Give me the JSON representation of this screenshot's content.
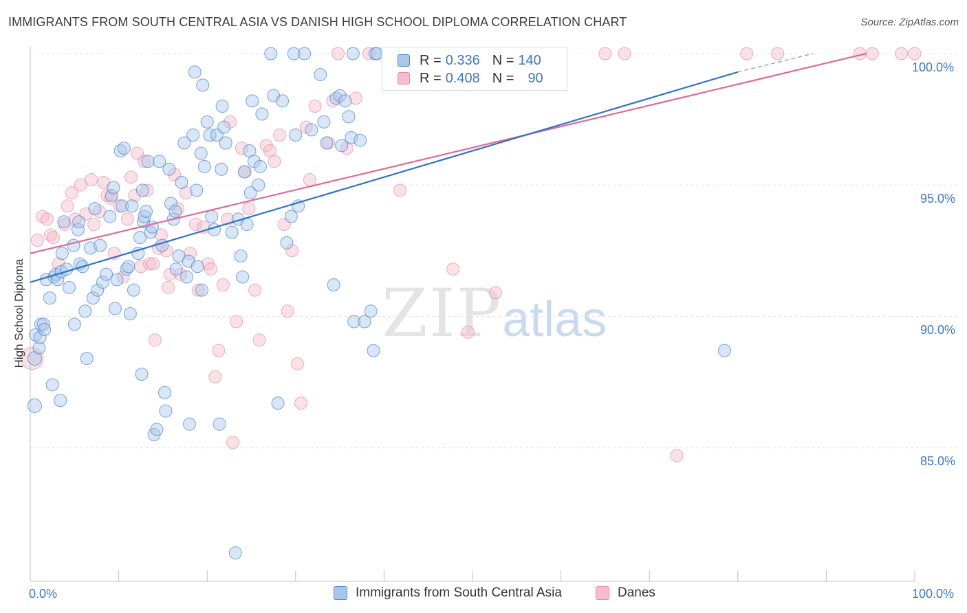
{
  "title": "IMMIGRANTS FROM SOUTH CENTRAL ASIA VS DANISH HIGH SCHOOL DIPLOMA CORRELATION CHART",
  "source": "Source: ZipAtlas.com",
  "watermark": {
    "zip": "ZIP",
    "atlas": "atlas"
  },
  "legend": {
    "row1": {
      "r_label": "R =",
      "r_value": "0.336",
      "n_label": "N =",
      "n_value": "140"
    },
    "row2": {
      "r_label": "R =",
      "r_value": "0.408",
      "n_label": "N =",
      "n_value": "90"
    }
  },
  "bottom_legend": {
    "series1": "Immigrants from South Central Asia",
    "series2": "Danes"
  },
  "axis": {
    "x_min_label": "0.0%",
    "x_max_label": "100.0%",
    "y_labels": [
      "100.0%",
      "95.0%",
      "90.0%",
      "85.0%"
    ]
  },
  "colors": {
    "blue_fill": "#a9c7ec",
    "blue_stroke": "#4f86cc",
    "blue_line": "#2f72cc",
    "pink_fill": "#f5bccb",
    "pink_stroke": "#e48aa3",
    "pink_line": "#e06a94",
    "tick_text": "#3a78c9"
  },
  "chart_data": {
    "type": "scatter",
    "title": "IMMIGRANTS FROM SOUTH CENTRAL ASIA VS DANISH HIGH SCHOOL DIPLOMA CORRELATION CHART",
    "xlabel": "",
    "ylabel": "High School Diploma",
    "xlim": [
      0,
      100
    ],
    "ylim": [
      80.5,
      100.6
    ],
    "x_ticks": [
      "0.0%",
      "100.0%"
    ],
    "y_ticks": [
      100,
      95,
      90,
      85
    ],
    "grid": true,
    "legend_position": "top-center",
    "series": [
      {
        "name": "Immigrants from South Central Asia",
        "R": 0.336,
        "N": 140,
        "trend": {
          "x0": 0,
          "y0": 91.3,
          "x1": 80,
          "y1": 99.3,
          "dashed_to": {
            "x": 88.5,
            "y": 100.0
          }
        },
        "points": [
          [
            0.5,
            86.6
          ],
          [
            0.5,
            88.4
          ],
          [
            0.6,
            89.3
          ],
          [
            1.0,
            88.8
          ],
          [
            1.1,
            89.2
          ],
          [
            1.2,
            89.7
          ],
          [
            1.5,
            89.7
          ],
          [
            1.6,
            89.5
          ],
          [
            1.8,
            91.4
          ],
          [
            2.2,
            90.7
          ],
          [
            2.5,
            87.4
          ],
          [
            2.7,
            91.5
          ],
          [
            2.9,
            91.6
          ],
          [
            3.1,
            91.4
          ],
          [
            3.4,
            86.8
          ],
          [
            3.5,
            91.7
          ],
          [
            3.6,
            92.4
          ],
          [
            3.8,
            93.6
          ],
          [
            4.1,
            91.8
          ],
          [
            4.4,
            91.1
          ],
          [
            4.9,
            92.7
          ],
          [
            5.0,
            89.7
          ],
          [
            5.4,
            93.3
          ],
          [
            5.5,
            93.6
          ],
          [
            5.6,
            92.0
          ],
          [
            5.9,
            91.9
          ],
          [
            6.2,
            90.2
          ],
          [
            6.4,
            88.4
          ],
          [
            6.8,
            92.6
          ],
          [
            7.1,
            90.7
          ],
          [
            7.3,
            94.1
          ],
          [
            7.6,
            91.0
          ],
          [
            7.9,
            92.7
          ],
          [
            8.2,
            91.3
          ],
          [
            8.6,
            91.6
          ],
          [
            9.0,
            93.8
          ],
          [
            9.2,
            94.6
          ],
          [
            9.4,
            94.9
          ],
          [
            9.6,
            90.3
          ],
          [
            9.8,
            91.4
          ],
          [
            10.2,
            96.3
          ],
          [
            10.4,
            94.2
          ],
          [
            10.6,
            96.4
          ],
          [
            10.9,
            91.8
          ],
          [
            11.1,
            91.9
          ],
          [
            11.3,
            90.1
          ],
          [
            11.5,
            94.2
          ],
          [
            11.7,
            91.0
          ],
          [
            12.2,
            92.4
          ],
          [
            12.4,
            93.0
          ],
          [
            12.6,
            87.8
          ],
          [
            12.7,
            94.8
          ],
          [
            12.8,
            93.6
          ],
          [
            12.9,
            93.8
          ],
          [
            13.1,
            94.0
          ],
          [
            13.3,
            95.9
          ],
          [
            13.6,
            93.2
          ],
          [
            13.8,
            93.4
          ],
          [
            14.0,
            85.5
          ],
          [
            14.3,
            85.7
          ],
          [
            14.6,
            95.9
          ],
          [
            14.9,
            92.7
          ],
          [
            15.2,
            87.1
          ],
          [
            15.3,
            86.4
          ],
          [
            15.7,
            95.6
          ],
          [
            15.9,
            94.3
          ],
          [
            16.2,
            93.7
          ],
          [
            16.4,
            94.0
          ],
          [
            16.5,
            91.8
          ],
          [
            16.8,
            92.3
          ],
          [
            17.1,
            95.1
          ],
          [
            17.4,
            96.6
          ],
          [
            17.7,
            91.5
          ],
          [
            17.9,
            92.1
          ],
          [
            18.0,
            85.9
          ],
          [
            18.4,
            96.9
          ],
          [
            18.6,
            99.3
          ],
          [
            18.8,
            94.8
          ],
          [
            18.9,
            91.9
          ],
          [
            19.3,
            96.2
          ],
          [
            19.4,
            91.0
          ],
          [
            19.5,
            98.8
          ],
          [
            19.7,
            95.7
          ],
          [
            20.0,
            97.4
          ],
          [
            20.3,
            96.9
          ],
          [
            20.5,
            93.8
          ],
          [
            20.8,
            93.3
          ],
          [
            21.1,
            96.9
          ],
          [
            21.4,
            85.9
          ],
          [
            21.6,
            95.6
          ],
          [
            21.7,
            98.0
          ],
          [
            21.9,
            97.2
          ],
          [
            22.1,
            96.6
          ],
          [
            22.8,
            93.2
          ],
          [
            23.2,
            81.0
          ],
          [
            23.5,
            93.7
          ],
          [
            23.8,
            92.3
          ],
          [
            24.0,
            91.5
          ],
          [
            24.2,
            95.5
          ],
          [
            24.5,
            93.5
          ],
          [
            24.8,
            96.3
          ],
          [
            24.9,
            94.7
          ],
          [
            25.1,
            98.2
          ],
          [
            25.3,
            95.9
          ],
          [
            25.8,
            95.0
          ],
          [
            26.0,
            95.7
          ],
          [
            26.2,
            97.7
          ],
          [
            27.2,
            100.0
          ],
          [
            27.5,
            98.4
          ],
          [
            28.0,
            86.7
          ],
          [
            28.5,
            98.2
          ],
          [
            29.0,
            92.8
          ],
          [
            29.5,
            93.8
          ],
          [
            29.8,
            100.0
          ],
          [
            30.0,
            96.9
          ],
          [
            30.3,
            94.2
          ],
          [
            31.0,
            100.0
          ],
          [
            31.8,
            97.1
          ],
          [
            32.8,
            99.2
          ],
          [
            33.2,
            97.4
          ],
          [
            33.5,
            96.6
          ],
          [
            34.3,
            91.2
          ],
          [
            34.6,
            98.3
          ],
          [
            35.0,
            98.4
          ],
          [
            35.2,
            96.5
          ],
          [
            35.6,
            98.2
          ],
          [
            36.0,
            97.6
          ],
          [
            36.3,
            96.8
          ],
          [
            36.6,
            89.8
          ],
          [
            37.3,
            96.7
          ],
          [
            37.8,
            89.8
          ],
          [
            38.5,
            90.2
          ],
          [
            38.8,
            88.7
          ],
          [
            39.0,
            100.0
          ],
          [
            39.2,
            100.0
          ],
          [
            40.5,
            100.0
          ],
          [
            41.0,
            100.0
          ],
          [
            41.5,
            100.0
          ],
          [
            36.5,
            100.0
          ],
          [
            78.5,
            88.7
          ]
        ]
      },
      {
        "name": "Danes",
        "R": 0.408,
        "N": 90,
        "trend": {
          "x0": 0,
          "y0": 92.4,
          "x1": 94.5,
          "y1": 100.0
        },
        "points": [
          [
            0.2,
            88.4
          ],
          [
            0.8,
            92.9
          ],
          [
            1.4,
            93.8
          ],
          [
            1.9,
            93.7
          ],
          [
            2.3,
            93.1
          ],
          [
            2.6,
            93.0
          ],
          [
            3.2,
            92.0
          ],
          [
            3.9,
            93.5
          ],
          [
            4.2,
            94.2
          ],
          [
            4.7,
            94.7
          ],
          [
            5.1,
            93.7
          ],
          [
            5.7,
            95.0
          ],
          [
            6.3,
            93.9
          ],
          [
            6.9,
            95.2
          ],
          [
            7.2,
            93.5
          ],
          [
            7.8,
            94.0
          ],
          [
            8.3,
            95.1
          ],
          [
            8.7,
            94.6
          ],
          [
            9.1,
            94.5
          ],
          [
            9.5,
            92.4
          ],
          [
            10.1,
            94.2
          ],
          [
            10.5,
            91.5
          ],
          [
            11.0,
            93.7
          ],
          [
            11.4,
            95.3
          ],
          [
            11.8,
            94.6
          ],
          [
            12.1,
            96.2
          ],
          [
            12.5,
            91.9
          ],
          [
            12.9,
            95.9
          ],
          [
            13.2,
            94.8
          ],
          [
            13.5,
            92.0
          ],
          [
            13.9,
            92.0
          ],
          [
            14.1,
            89.1
          ],
          [
            14.5,
            92.6
          ],
          [
            14.8,
            93.1
          ],
          [
            15.4,
            92.5
          ],
          [
            15.6,
            91.1
          ],
          [
            15.8,
            91.6
          ],
          [
            16.3,
            95.4
          ],
          [
            16.7,
            94.1
          ],
          [
            17.0,
            91.6
          ],
          [
            17.6,
            94.7
          ],
          [
            18.1,
            92.4
          ],
          [
            18.7,
            93.5
          ],
          [
            19.0,
            91.0
          ],
          [
            19.6,
            93.4
          ],
          [
            20.1,
            92.0
          ],
          [
            20.4,
            91.8
          ],
          [
            20.9,
            87.7
          ],
          [
            21.3,
            88.7
          ],
          [
            21.8,
            91.2
          ],
          [
            22.3,
            93.7
          ],
          [
            22.6,
            97.4
          ],
          [
            22.9,
            85.2
          ],
          [
            23.3,
            89.8
          ],
          [
            23.9,
            96.4
          ],
          [
            24.3,
            95.5
          ],
          [
            24.7,
            94.1
          ],
          [
            25.4,
            91.0
          ],
          [
            25.9,
            89.1
          ],
          [
            26.7,
            96.5
          ],
          [
            27.1,
            96.3
          ],
          [
            27.6,
            95.9
          ],
          [
            28.2,
            96.9
          ],
          [
            28.7,
            93.5
          ],
          [
            29.1,
            90.2
          ],
          [
            29.6,
            92.5
          ],
          [
            30.2,
            88.2
          ],
          [
            30.6,
            86.7
          ],
          [
            31.2,
            97.2
          ],
          [
            31.6,
            95.2
          ],
          [
            32.2,
            98.0
          ],
          [
            33.7,
            96.6
          ],
          [
            34.2,
            98.2
          ],
          [
            34.8,
            100.0
          ],
          [
            35.8,
            96.4
          ],
          [
            36.8,
            98.3
          ],
          [
            38.3,
            100.0
          ],
          [
            41.8,
            94.8
          ],
          [
            47.8,
            91.8
          ],
          [
            49.5,
            89.4
          ],
          [
            52.6,
            90.9
          ],
          [
            65.0,
            100.0
          ],
          [
            67.2,
            100.0
          ],
          [
            73.1,
            84.7
          ],
          [
            81.0,
            100.0
          ],
          [
            84.5,
            100.0
          ],
          [
            93.8,
            100.0
          ],
          [
            95.2,
            100.0
          ],
          [
            98.5,
            100.0
          ],
          [
            100.0,
            100.0
          ]
        ]
      }
    ]
  }
}
